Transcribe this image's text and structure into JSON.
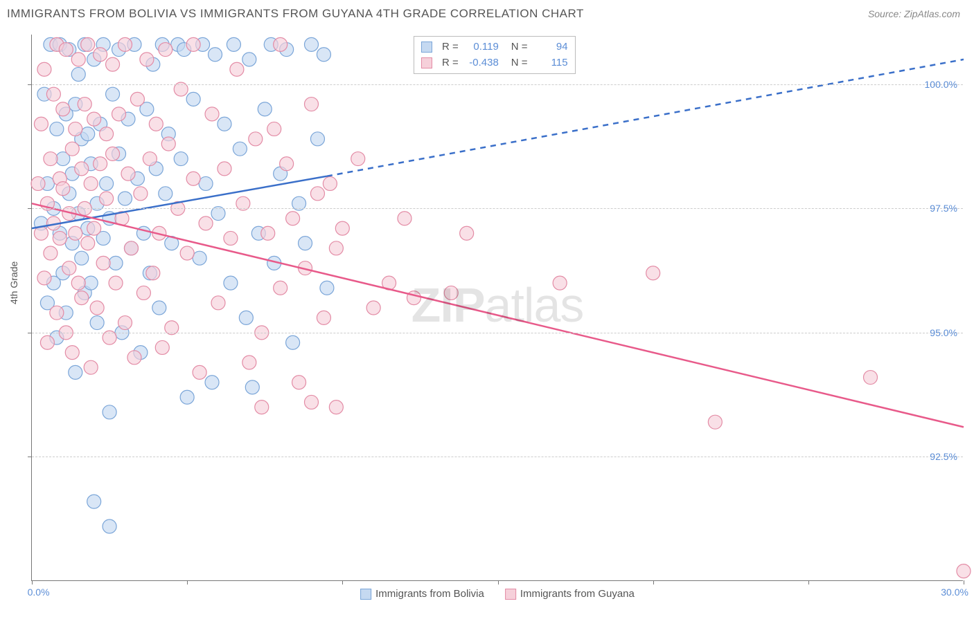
{
  "title": "IMMIGRANTS FROM BOLIVIA VS IMMIGRANTS FROM GUYANA 4TH GRADE CORRELATION CHART",
  "source": "Source: ZipAtlas.com",
  "ylabel": "4th Grade",
  "watermark_bold": "ZIP",
  "watermark_rest": "atlas",
  "chart": {
    "type": "scatter-with-regression",
    "background_color": "#ffffff",
    "grid_color": "#cccccc",
    "axis_color": "#777777",
    "xlim": [
      0.0,
      30.0
    ],
    "ylim": [
      90.0,
      101.0
    ],
    "x_tick_label_min": "0.0%",
    "x_tick_label_max": "30.0%",
    "y_tick_labels": [
      "92.5%",
      "95.0%",
      "97.5%",
      "100.0%"
    ],
    "y_tick_values": [
      92.5,
      95.0,
      97.5,
      100.0
    ],
    "x_minor_tick_step": 5.0,
    "series": [
      {
        "name": "Immigrants from Bolivia",
        "color_fill": "#c5d9f1",
        "color_stroke": "#7aa5d8",
        "marker_radius": 10,
        "marker_opacity": 0.65,
        "R": "0.119",
        "N": "94",
        "regression": {
          "x1": 0.0,
          "y1": 97.1,
          "x_solid_end": 9.5,
          "y_solid_end": 98.15,
          "x2": 30.0,
          "y2": 100.5,
          "line_color": "#3a6fc9",
          "line_width": 2.5,
          "dash_after_solid": true
        },
        "points": [
          [
            0.3,
            97.2
          ],
          [
            0.4,
            99.8
          ],
          [
            0.5,
            95.6
          ],
          [
            0.5,
            98.0
          ],
          [
            0.6,
            100.8
          ],
          [
            0.7,
            97.5
          ],
          [
            0.7,
            96.0
          ],
          [
            0.8,
            99.1
          ],
          [
            0.8,
            94.9
          ],
          [
            0.9,
            100.8
          ],
          [
            0.9,
            97.0
          ],
          [
            1.0,
            96.2
          ],
          [
            1.0,
            98.5
          ],
          [
            1.1,
            99.4
          ],
          [
            1.1,
            95.4
          ],
          [
            1.2,
            97.8
          ],
          [
            1.2,
            100.7
          ],
          [
            1.3,
            96.8
          ],
          [
            1.3,
            98.2
          ],
          [
            1.4,
            99.6
          ],
          [
            1.4,
            94.2
          ],
          [
            1.5,
            97.4
          ],
          [
            1.5,
            100.2
          ],
          [
            1.6,
            96.5
          ],
          [
            1.6,
            98.9
          ],
          [
            1.7,
            95.8
          ],
          [
            1.7,
            100.8
          ],
          [
            1.8,
            97.1
          ],
          [
            1.8,
            99.0
          ],
          [
            1.9,
            96.0
          ],
          [
            1.9,
            98.4
          ],
          [
            2.0,
            100.5
          ],
          [
            2.0,
            91.6
          ],
          [
            2.1,
            97.6
          ],
          [
            2.1,
            95.2
          ],
          [
            2.2,
            99.2
          ],
          [
            2.3,
            96.9
          ],
          [
            2.3,
            100.8
          ],
          [
            2.4,
            98.0
          ],
          [
            2.5,
            93.4
          ],
          [
            2.5,
            97.3
          ],
          [
            2.5,
            91.1
          ],
          [
            2.6,
            99.8
          ],
          [
            2.7,
            96.4
          ],
          [
            2.8,
            100.7
          ],
          [
            2.8,
            98.6
          ],
          [
            2.9,
            95.0
          ],
          [
            3.0,
            97.7
          ],
          [
            3.1,
            99.3
          ],
          [
            3.2,
            96.7
          ],
          [
            3.3,
            100.8
          ],
          [
            3.4,
            98.1
          ],
          [
            3.5,
            94.6
          ],
          [
            3.6,
            97.0
          ],
          [
            3.7,
            99.5
          ],
          [
            3.8,
            96.2
          ],
          [
            3.9,
            100.4
          ],
          [
            4.0,
            98.3
          ],
          [
            4.1,
            95.5
          ],
          [
            4.2,
            100.8
          ],
          [
            4.3,
            97.8
          ],
          [
            4.4,
            99.0
          ],
          [
            4.5,
            96.8
          ],
          [
            4.7,
            100.8
          ],
          [
            4.8,
            98.5
          ],
          [
            4.9,
            100.7
          ],
          [
            5.0,
            93.7
          ],
          [
            5.2,
            99.7
          ],
          [
            5.4,
            96.5
          ],
          [
            5.5,
            100.8
          ],
          [
            5.6,
            98.0
          ],
          [
            5.8,
            94.0
          ],
          [
            5.9,
            100.6
          ],
          [
            6.0,
            97.4
          ],
          [
            6.2,
            99.2
          ],
          [
            6.4,
            96.0
          ],
          [
            6.5,
            100.8
          ],
          [
            6.7,
            98.7
          ],
          [
            6.9,
            95.3
          ],
          [
            7.0,
            100.5
          ],
          [
            7.1,
            93.9
          ],
          [
            7.3,
            97.0
          ],
          [
            7.5,
            99.5
          ],
          [
            7.7,
            100.8
          ],
          [
            7.8,
            96.4
          ],
          [
            8.0,
            98.2
          ],
          [
            8.2,
            100.7
          ],
          [
            8.4,
            94.8
          ],
          [
            8.6,
            97.6
          ],
          [
            8.8,
            96.8
          ],
          [
            9.0,
            100.8
          ],
          [
            9.2,
            98.9
          ],
          [
            9.4,
            100.6
          ],
          [
            9.5,
            95.9
          ]
        ]
      },
      {
        "name": "Immigrants from Guyana",
        "color_fill": "#f6d0da",
        "color_stroke": "#e38ba5",
        "marker_radius": 10,
        "marker_opacity": 0.65,
        "R": "-0.438",
        "N": "115",
        "regression": {
          "x1": 0.0,
          "y1": 97.6,
          "x_solid_end": 30.0,
          "y_solid_end": 93.1,
          "x2": 30.0,
          "y2": 93.1,
          "line_color": "#e85a8a",
          "line_width": 2.5,
          "dash_after_solid": false
        },
        "points": [
          [
            0.2,
            98.0
          ],
          [
            0.3,
            97.0
          ],
          [
            0.3,
            99.2
          ],
          [
            0.4,
            96.1
          ],
          [
            0.4,
            100.3
          ],
          [
            0.5,
            97.6
          ],
          [
            0.5,
            94.8
          ],
          [
            0.6,
            98.5
          ],
          [
            0.6,
            96.6
          ],
          [
            0.7,
            99.8
          ],
          [
            0.7,
            97.2
          ],
          [
            0.8,
            95.4
          ],
          [
            0.8,
            100.8
          ],
          [
            0.9,
            98.1
          ],
          [
            0.9,
            96.9
          ],
          [
            1.0,
            97.9
          ],
          [
            1.0,
            99.5
          ],
          [
            1.1,
            95.0
          ],
          [
            1.1,
            100.7
          ],
          [
            1.2,
            97.4
          ],
          [
            1.2,
            96.3
          ],
          [
            1.3,
            98.7
          ],
          [
            1.3,
            94.6
          ],
          [
            1.4,
            99.1
          ],
          [
            1.4,
            97.0
          ],
          [
            1.5,
            100.5
          ],
          [
            1.5,
            96.0
          ],
          [
            1.6,
            98.3
          ],
          [
            1.6,
            95.7
          ],
          [
            1.7,
            99.6
          ],
          [
            1.7,
            97.5
          ],
          [
            1.8,
            100.8
          ],
          [
            1.8,
            96.8
          ],
          [
            1.9,
            98.0
          ],
          [
            1.9,
            94.3
          ],
          [
            2.0,
            99.3
          ],
          [
            2.0,
            97.1
          ],
          [
            2.1,
            95.5
          ],
          [
            2.2,
            100.6
          ],
          [
            2.2,
            98.4
          ],
          [
            2.3,
            96.4
          ],
          [
            2.4,
            99.0
          ],
          [
            2.4,
            97.7
          ],
          [
            2.5,
            94.9
          ],
          [
            2.6,
            100.4
          ],
          [
            2.6,
            98.6
          ],
          [
            2.7,
            96.0
          ],
          [
            2.8,
            99.4
          ],
          [
            2.9,
            97.3
          ],
          [
            3.0,
            95.2
          ],
          [
            3.0,
            100.8
          ],
          [
            3.1,
            98.2
          ],
          [
            3.2,
            96.7
          ],
          [
            3.3,
            94.5
          ],
          [
            3.4,
            99.7
          ],
          [
            3.5,
            97.8
          ],
          [
            3.6,
            95.8
          ],
          [
            3.7,
            100.5
          ],
          [
            3.8,
            98.5
          ],
          [
            3.9,
            96.2
          ],
          [
            4.0,
            99.2
          ],
          [
            4.1,
            97.0
          ],
          [
            4.2,
            94.7
          ],
          [
            4.3,
            100.7
          ],
          [
            4.4,
            98.8
          ],
          [
            4.5,
            95.1
          ],
          [
            4.7,
            97.5
          ],
          [
            4.8,
            99.9
          ],
          [
            5.0,
            96.6
          ],
          [
            5.2,
            98.1
          ],
          [
            5.2,
            100.8
          ],
          [
            5.4,
            94.2
          ],
          [
            5.6,
            97.2
          ],
          [
            5.8,
            99.4
          ],
          [
            6.0,
            95.6
          ],
          [
            6.2,
            98.3
          ],
          [
            6.4,
            96.9
          ],
          [
            6.6,
            100.3
          ],
          [
            6.8,
            97.6
          ],
          [
            7.0,
            94.4
          ],
          [
            7.2,
            98.9
          ],
          [
            7.4,
            95.0
          ],
          [
            7.4,
            93.5
          ],
          [
            7.6,
            97.0
          ],
          [
            7.8,
            99.1
          ],
          [
            8.0,
            100.8
          ],
          [
            8.0,
            95.9
          ],
          [
            8.2,
            98.4
          ],
          [
            8.4,
            97.3
          ],
          [
            8.6,
            94.0
          ],
          [
            8.8,
            96.3
          ],
          [
            9.0,
            99.6
          ],
          [
            9.0,
            93.6
          ],
          [
            9.2,
            97.8
          ],
          [
            9.4,
            95.3
          ],
          [
            9.6,
            98.0
          ],
          [
            9.8,
            96.7
          ],
          [
            9.8,
            93.5
          ],
          [
            10.0,
            97.1
          ],
          [
            10.5,
            98.5
          ],
          [
            11.0,
            95.5
          ],
          [
            11.5,
            96.0
          ],
          [
            12.0,
            97.3
          ],
          [
            12.3,
            95.7
          ],
          [
            13.5,
            95.8
          ],
          [
            14.0,
            97.0
          ],
          [
            17.0,
            96.0
          ],
          [
            20.0,
            96.2
          ],
          [
            22.0,
            93.2
          ],
          [
            27.0,
            94.1
          ],
          [
            30.0,
            90.2
          ]
        ]
      }
    ]
  },
  "legend": {
    "items": [
      {
        "label": "Immigrants from Bolivia",
        "fill": "#c5d9f1",
        "stroke": "#7aa5d8"
      },
      {
        "label": "Immigrants from Guyana",
        "fill": "#f6d0da",
        "stroke": "#e38ba5"
      }
    ]
  }
}
